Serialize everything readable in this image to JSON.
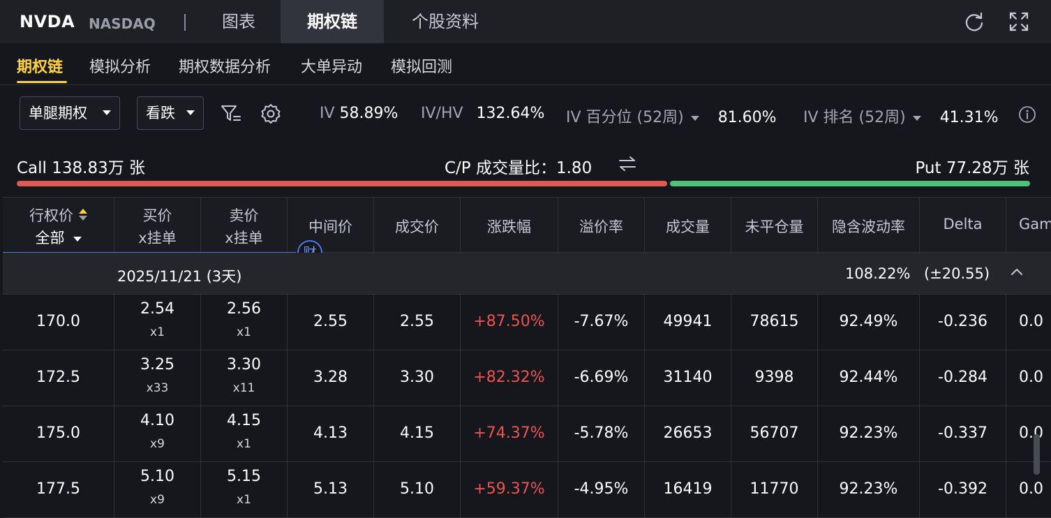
{
  "header": {
    "ticker": "NVDA",
    "exchange": "NASDAQ",
    "tabs": [
      {
        "label": "图表",
        "active": false
      },
      {
        "label": "期权链",
        "active": true
      },
      {
        "label": "个股资料",
        "active": false
      }
    ],
    "icons": [
      "refresh-icon",
      "fullscreen-icon"
    ]
  },
  "subtabs": [
    {
      "label": "期权链",
      "active": true
    },
    {
      "label": "模拟分析",
      "active": false
    },
    {
      "label": "期权数据分析",
      "active": false
    },
    {
      "label": "大单异动",
      "active": false
    },
    {
      "label": "模拟回测",
      "active": false
    }
  ],
  "filters": {
    "strategy": "单腿期权",
    "direction": "看跌",
    "icons": [
      "filter-icon",
      "settings-icon"
    ]
  },
  "stats": {
    "iv_label": "IV",
    "iv_value": "58.89%",
    "ivhv_label": "IV/HV",
    "ivhv_value": "132.64%",
    "ivpct_label": "IV 百分位 (52周)",
    "ivpct_value": "81.60%",
    "ivrank_label": "IV 排名 (52周)",
    "ivrank_value": "41.31%"
  },
  "volume": {
    "call_text": "Call 138.83万 张",
    "ratio_text": "C/P 成交量比：1.80",
    "put_text": "Put 77.28万 张",
    "call_fraction": 0.642,
    "colors": {
      "call": "#e05a54",
      "put": "#4fc27a",
      "accent": "#ffd23f",
      "up": "#ef5350"
    }
  },
  "table": {
    "headers": {
      "strike": "行权价",
      "strike_filter": "全部",
      "bid": "买价",
      "bid_sub": "x挂单",
      "ask": "卖价",
      "ask_sub": "x挂单",
      "mid": "中间价",
      "last": "成交价",
      "change": "涨跌幅",
      "premium": "溢价率",
      "volume": "成交量",
      "oi": "未平仓量",
      "iv": "隐含波动率",
      "delta": "Delta",
      "gamma": "Gamma"
    },
    "badge": "财",
    "expiry": {
      "date": "2025/11/21 (3天)",
      "iv": "108.22%",
      "move": "(±20.55)"
    },
    "rows": [
      {
        "strike": "170.0",
        "bid": "2.54",
        "bid_size": "x1",
        "ask": "2.56",
        "ask_size": "x1",
        "mid": "2.55",
        "last": "2.55",
        "change": "+87.50%",
        "premium": "-7.67%",
        "volume": "49941",
        "oi": "78615",
        "iv": "92.49%",
        "delta": "-0.236",
        "gamma": "0.0"
      },
      {
        "strike": "172.5",
        "bid": "3.25",
        "bid_size": "x33",
        "ask": "3.30",
        "ask_size": "x11",
        "mid": "3.28",
        "last": "3.30",
        "change": "+82.32%",
        "premium": "-6.69%",
        "volume": "31140",
        "oi": "9398",
        "iv": "92.44%",
        "delta": "-0.284",
        "gamma": "0.0"
      },
      {
        "strike": "175.0",
        "bid": "4.10",
        "bid_size": "x9",
        "ask": "4.15",
        "ask_size": "x1",
        "mid": "4.13",
        "last": "4.15",
        "change": "+74.37%",
        "premium": "-5.78%",
        "volume": "26653",
        "oi": "56707",
        "iv": "92.23%",
        "delta": "-0.337",
        "gamma": "0.0"
      },
      {
        "strike": "177.5",
        "bid": "5.10",
        "bid_size": "x9",
        "ask": "5.15",
        "ask_size": "x1",
        "mid": "5.13",
        "last": "5.10",
        "change": "+59.37%",
        "premium": "-4.95%",
        "volume": "16419",
        "oi": "11770",
        "iv": "92.23%",
        "delta": "-0.392",
        "gamma": "0.0"
      }
    ]
  }
}
